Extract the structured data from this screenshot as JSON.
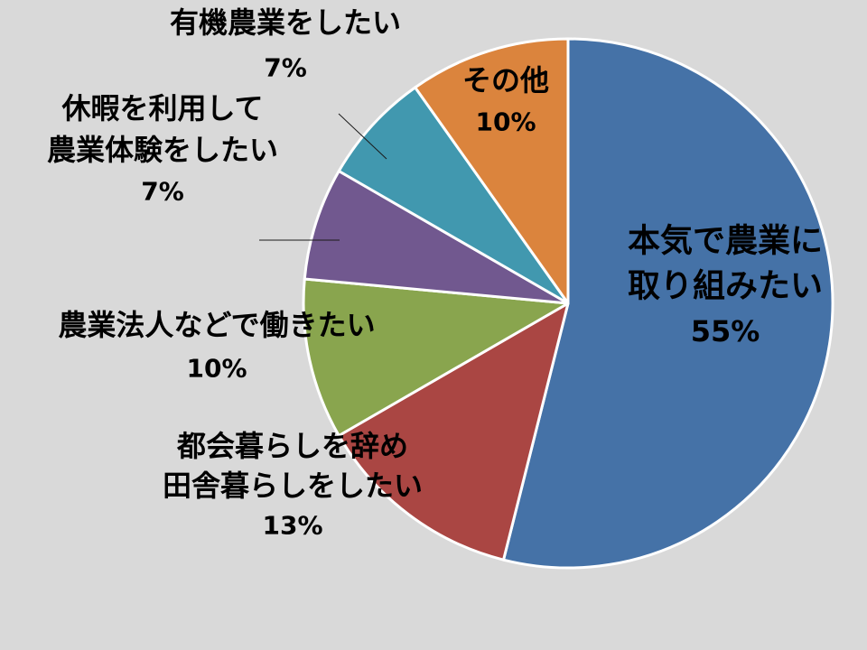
{
  "chart_data": {
    "type": "pie",
    "title": "",
    "start_angle_deg": 0,
    "direction": "clockwise",
    "slices": [
      {
        "label": [
          "本気で農業に",
          "取り組みたい"
        ],
        "percent_label": "55%",
        "value": 55,
        "color": "#4572A7"
      },
      {
        "label": [
          "都会暮らしを辞め",
          "田舎暮らしをしたい"
        ],
        "percent_label": "13%",
        "value": 13,
        "color": "#AA4643"
      },
      {
        "label": [
          "農業法人などで働きたい"
        ],
        "percent_label": "10%",
        "value": 10,
        "color": "#89A54E"
      },
      {
        "label": [
          "休暇を利用して",
          "農業体験をしたい"
        ],
        "percent_label": "7%",
        "value": 7,
        "color": "#71588F"
      },
      {
        "label": [
          "有機農業をしたい"
        ],
        "percent_label": "7%",
        "value": 7,
        "color": "#4198AF"
      },
      {
        "label": [
          "その他"
        ],
        "percent_label": "10%",
        "value": 10,
        "color": "#DB843D"
      }
    ]
  }
}
